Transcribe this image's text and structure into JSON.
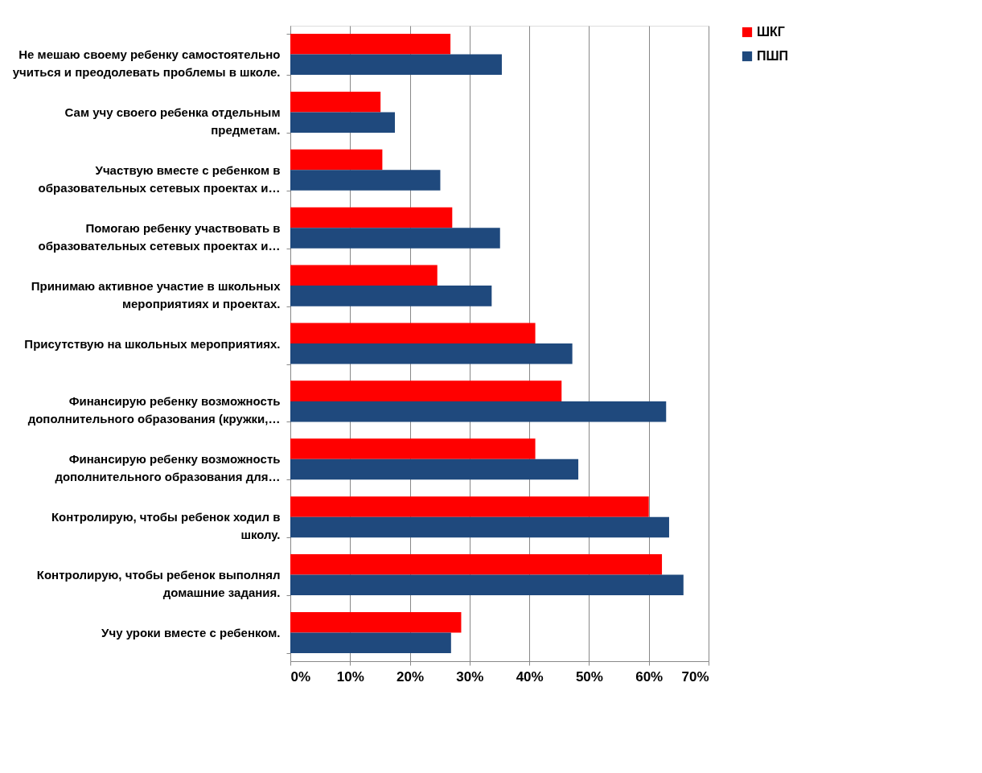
{
  "chart_data": {
    "type": "bar",
    "orientation": "horizontal",
    "categories": [
      "Не мешаю своему ребенку самостоятельно учиться и преодолевать проблемы в школе.",
      "Сам учу своего ребенка отдельным предметам.",
      "Участвую вместе с ребенком в образовательных  сетевых проектах и…",
      "Помогаю ребенку участвовать в образовательных  сетевых проектах и…",
      "Принимаю активное участие в  школьных мероприятиях и  проектах.",
      "Присутствую на школьных мероприятиях.",
      "Финансирую ребенку возможность дополнительного образования (кружки,…",
      "Финансирую ребенку возможность дополнительного образования для…",
      "Контролирую, чтобы ребенок ходил в школу.",
      "Контролирую, чтобы ребенок выполнял домашние задания.",
      "Учу уроки вместе с ребенком."
    ],
    "series": [
      {
        "name": "ШКГ",
        "color": "#ff0000",
        "values": [
          26.8,
          15.1,
          15.4,
          27.1,
          24.6,
          41.0,
          45.4,
          41.0,
          60.0,
          62.2,
          28.6
        ]
      },
      {
        "name": "ПШП",
        "color": "#1f497d",
        "values": [
          35.4,
          17.5,
          25.1,
          35.1,
          33.7,
          47.2,
          62.9,
          48.2,
          63.4,
          65.8,
          26.9
        ]
      }
    ],
    "xlim": [
      0,
      70
    ],
    "xticks": [
      {
        "value": 0,
        "label": "0%"
      },
      {
        "value": 10,
        "label": "10%"
      },
      {
        "value": 20,
        "label": "20%"
      },
      {
        "value": 30,
        "label": "30%"
      },
      {
        "value": 40,
        "label": "40%"
      },
      {
        "value": 50,
        "label": "50%"
      },
      {
        "value": 60,
        "label": "60%"
      },
      {
        "value": 70,
        "label": "70%"
      }
    ],
    "grid": "x",
    "legend": "right"
  }
}
